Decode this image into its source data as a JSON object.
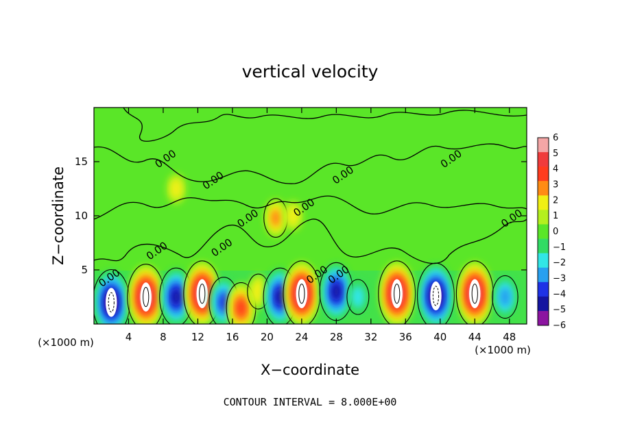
{
  "chart_data": {
    "type": "heatmap",
    "title": "vertical velocity",
    "xlabel": "X−coordinate",
    "ylabel": "Z−coordinate",
    "x_unit_left": "(×1000 m)",
    "x_unit_right": "(×1000 m)",
    "xlim": [
      0,
      50
    ],
    "ylim": [
      0,
      20
    ],
    "x_ticks": [
      4,
      8,
      12,
      16,
      20,
      24,
      28,
      32,
      36,
      40,
      44,
      48
    ],
    "y_ticks": [
      5,
      10,
      15
    ],
    "colorbar": {
      "labels": [
        "6",
        "5",
        "4",
        "3",
        "2",
        "1",
        "0",
        "−1",
        "−2",
        "−3",
        "−4",
        "−5",
        "−6"
      ],
      "colors": [
        "#f4a6a6",
        "#f03c3c",
        "#ff3c1e",
        "#ff8c14",
        "#f0f014",
        "#b4f01e",
        "#5ae628",
        "#32dc64",
        "#32e6e6",
        "#28a0f0",
        "#1e32e6",
        "#1414a0",
        "#8c14a0"
      ]
    },
    "cells": [
      {
        "x": 2,
        "z": 2,
        "w": -6
      },
      {
        "x": 6,
        "z": 2.5,
        "w": 6
      },
      {
        "x": 9.5,
        "z": 2.5,
        "w": -5
      },
      {
        "x": 12.5,
        "z": 2.8,
        "w": 6
      },
      {
        "x": 15,
        "z": 2,
        "w": -4
      },
      {
        "x": 17,
        "z": 1.5,
        "w": 4
      },
      {
        "x": 19,
        "z": 3,
        "w": 2
      },
      {
        "x": 21.5,
        "z": 2.5,
        "w": -5
      },
      {
        "x": 24,
        "z": 2.8,
        "w": 6
      },
      {
        "x": 28,
        "z": 3,
        "w": -5
      },
      {
        "x": 30.5,
        "z": 2.5,
        "w": -2
      },
      {
        "x": 35,
        "z": 2.8,
        "w": 6
      },
      {
        "x": 39.5,
        "z": 2.6,
        "w": -6
      },
      {
        "x": 44,
        "z": 2.8,
        "w": 6
      },
      {
        "x": 47.5,
        "z": 2.5,
        "w": -3
      },
      {
        "x": 9.5,
        "z": 12.5,
        "w": 1.5
      },
      {
        "x": 21,
        "z": 9.8,
        "w": 2.5
      },
      {
        "x": 23,
        "z": 10,
        "w": 1.5
      }
    ],
    "contour_label": "0.00",
    "contour_label_positions": [
      [
        2,
        4
      ],
      [
        8.5,
        15
      ],
      [
        14,
        13
      ],
      [
        15,
        6.8
      ],
      [
        18,
        9.5
      ],
      [
        7.5,
        6.5
      ],
      [
        26,
        4.3
      ],
      [
        28.5,
        4.3
      ],
      [
        29,
        13.5
      ],
      [
        24.5,
        10.5
      ],
      [
        41.5,
        15
      ],
      [
        48.5,
        9.5
      ]
    ],
    "contour_interval": "CONTOUR INTERVAL = 8.000E+00"
  }
}
